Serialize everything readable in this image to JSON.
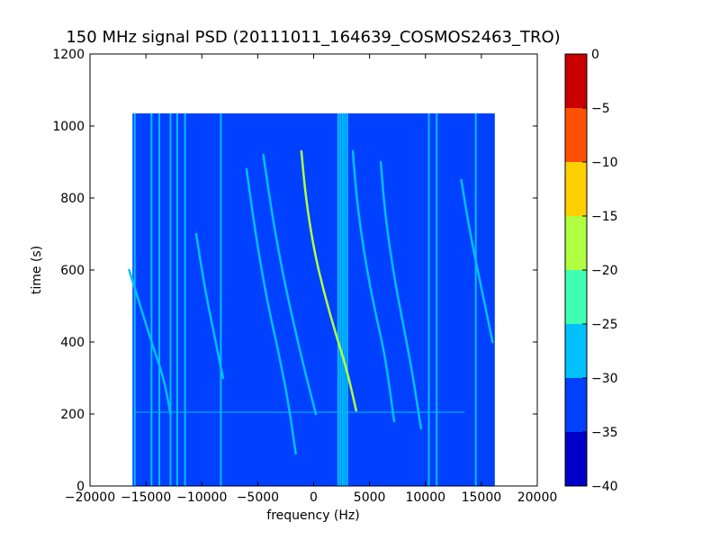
{
  "chart_data": {
    "type": "heatmap",
    "title": "150 MHz signal PSD (20111011_164639_COSMOS2463_TRO)",
    "xlabel": "frequency (Hz)",
    "ylabel": "time (s)",
    "xlim": [
      -20000,
      20000
    ],
    "ylim": [
      0,
      1200
    ],
    "xticks": [
      -20000,
      -15000,
      -10000,
      -5000,
      0,
      5000,
      10000,
      15000,
      20000
    ],
    "xtick_labels": [
      "−20000",
      "−15000",
      "−10000",
      "−5000",
      "0",
      "5000",
      "10000",
      "15000",
      "20000"
    ],
    "yticks": [
      0,
      200,
      400,
      600,
      800,
      1000,
      1200
    ],
    "ytick_labels": [
      "0",
      "200",
      "400",
      "600",
      "800",
      "1000",
      "1200"
    ],
    "data_extent": {
      "x": [
        -16200,
        16200
      ],
      "y": [
        0,
        1035
      ]
    },
    "background_level": -33,
    "colorbar": {
      "levels": [
        -40,
        -35,
        -30,
        -25,
        -20,
        -15,
        -10,
        -5,
        0
      ],
      "tick_labels": [
        "−40",
        "−35",
        "−30",
        "−25",
        "−20",
        "−15",
        "−10",
        "−5",
        "0"
      ],
      "colors": [
        "#0000c8",
        "#0040ff",
        "#00c0ff",
        "#40ffb0",
        "#b0ff40",
        "#ffd000",
        "#ff5000",
        "#c80000"
      ]
    },
    "vertical_lines": [
      {
        "x": -16000,
        "level": -29
      },
      {
        "x": -14500,
        "level": -29
      },
      {
        "x": -13800,
        "level": -28
      },
      {
        "x": -12800,
        "level": -28
      },
      {
        "x": -12200,
        "level": -29
      },
      {
        "x": -11500,
        "level": -29
      },
      {
        "x": -8300,
        "level": -27
      },
      {
        "x": 2200,
        "level": -28
      },
      {
        "x": 2400,
        "level": -28
      },
      {
        "x": 2600,
        "level": -28
      },
      {
        "x": 2800,
        "level": -28
      },
      {
        "x": 3000,
        "level": -28
      },
      {
        "x": 10300,
        "level": -29
      },
      {
        "x": 11000,
        "level": -29
      },
      {
        "x": 14500,
        "level": -30
      }
    ],
    "doppler_tracks": [
      {
        "points": [
          [
            -6000,
            880
          ],
          [
            -5200,
            700
          ],
          [
            -4200,
            520
          ],
          [
            -3200,
            380
          ],
          [
            -2300,
            240
          ],
          [
            -1600,
            90
          ]
        ],
        "level": -28
      },
      {
        "points": [
          [
            -4500,
            920
          ],
          [
            -3700,
            750
          ],
          [
            -2700,
            580
          ],
          [
            -1700,
            440
          ],
          [
            -800,
            320
          ],
          [
            200,
            200
          ]
        ],
        "level": -28
      },
      {
        "points": [
          [
            -1100,
            930
          ],
          [
            -700,
            800
          ],
          [
            0,
            660
          ],
          [
            900,
            540
          ],
          [
            2000,
            420
          ],
          [
            3000,
            320
          ],
          [
            3800,
            210
          ]
        ],
        "level": -18
      },
      {
        "points": [
          [
            3500,
            930
          ],
          [
            3900,
            780
          ],
          [
            4700,
            610
          ],
          [
            5600,
            470
          ],
          [
            6400,
            360
          ],
          [
            7200,
            180
          ]
        ],
        "level": -28
      },
      {
        "points": [
          [
            6000,
            900
          ],
          [
            6400,
            750
          ],
          [
            7200,
            580
          ],
          [
            8000,
            450
          ],
          [
            8800,
            320
          ],
          [
            9600,
            160
          ]
        ],
        "level": -28
      },
      {
        "points": [
          [
            -10500,
            700
          ],
          [
            -9800,
            560
          ],
          [
            -8900,
            420
          ],
          [
            -8100,
            300
          ]
        ],
        "level": -30
      },
      {
        "points": [
          [
            -16500,
            600
          ],
          [
            -15500,
            500
          ],
          [
            -14500,
            400
          ],
          [
            -13400,
            300
          ],
          [
            -12800,
            200
          ]
        ],
        "level": -30
      },
      {
        "points": [
          [
            13200,
            850
          ],
          [
            14000,
            700
          ],
          [
            15000,
            550
          ],
          [
            16000,
            400
          ]
        ],
        "level": -30
      }
    ],
    "horizontal_lines": [
      {
        "y": 205,
        "x": [
          -16000,
          13500
        ],
        "level": -30
      }
    ]
  }
}
